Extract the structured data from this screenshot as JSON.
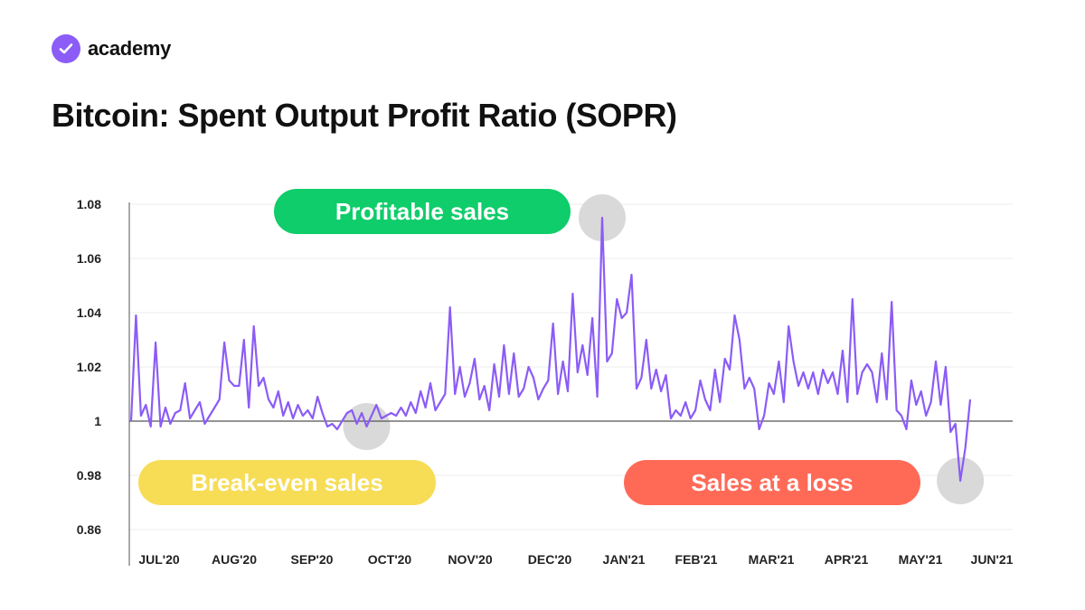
{
  "brand": {
    "name": "academy",
    "icon": "checkmark-icon",
    "color": "#8b5cf6"
  },
  "colors": {
    "line": "#8b5cf6",
    "baseline": "#555555",
    "highlight": "#d9d9d9",
    "profit": "#0fcd6a",
    "breakeven": "#f7dc56",
    "loss": "#ff6a57"
  },
  "annotations": {
    "profit": "Profitable sales",
    "breakeven": "Break-even sales",
    "loss": "Sales at a loss"
  },
  "chart_data": {
    "type": "line",
    "title": "Bitcoin: Spent Output Profit Ratio (SOPR)",
    "xlabel": "",
    "ylabel": "",
    "ylim": [
      0.86,
      1.08
    ],
    "y_axis_note": "axis is compressed: labels 0.96 position shows 0.86",
    "ytick_labels": [
      "1.08",
      "1.06",
      "1.04",
      "1.02",
      "1",
      "0.98",
      "0.86"
    ],
    "xtick_labels": [
      "JUL'20",
      "AUG'20",
      "SEP'20",
      "OCT'20",
      "NOV'20",
      "DEC'20",
      "JAN'21",
      "FEB'21",
      "MAR'21",
      "APR'21",
      "MAY'21",
      "JUN'21"
    ],
    "reference_line": 1,
    "grid": true,
    "series": [
      {
        "values": [
          1.0,
          1.039,
          1.002,
          1.006,
          0.998,
          1.029,
          0.998,
          1.005,
          0.999,
          1.003,
          1.004,
          1.014,
          1.001,
          1.004,
          1.007,
          0.999,
          1.002,
          1.005,
          1.008,
          1.029,
          1.015,
          1.013,
          1.013,
          1.03,
          1.005,
          1.035,
          1.013,
          1.016,
          1.008,
          1.005,
          1.011,
          1.002,
          1.007,
          1.001,
          1.006,
          1.002,
          1.004,
          1.001,
          1.009,
          1.003,
          0.998,
          0.999,
          0.997,
          1.0,
          1.003,
          1.004,
          0.999,
          1.003,
          0.998,
          1.002,
          1.006,
          1.001,
          1.002,
          1.003,
          1.002,
          1.005,
          1.002,
          1.007,
          1.003,
          1.011,
          1.005,
          1.014,
          1.004,
          1.007,
          1.01,
          1.042,
          1.01,
          1.02,
          1.009,
          1.014,
          1.023,
          1.008,
          1.013,
          1.004,
          1.021,
          1.009,
          1.028,
          1.01,
          1.025,
          1.009,
          1.012,
          1.02,
          1.016,
          1.008,
          1.012,
          1.015,
          1.036,
          1.01,
          1.022,
          1.011,
          1.047,
          1.018,
          1.028,
          1.017,
          1.038,
          1.009,
          1.075,
          1.022,
          1.025,
          1.045,
          1.038,
          1.04,
          1.054,
          1.012,
          1.016,
          1.03,
          1.012,
          1.019,
          1.011,
          1.017,
          1.001,
          1.004,
          1.002,
          1.007,
          1.001,
          1.004,
          1.015,
          1.008,
          1.004,
          1.019,
          1.007,
          1.023,
          1.019,
          1.039,
          1.03,
          1.012,
          1.016,
          1.012,
          0.997,
          1.002,
          1.014,
          1.01,
          1.022,
          1.007,
          1.035,
          1.022,
          1.013,
          1.018,
          1.012,
          1.018,
          1.01,
          1.019,
          1.014,
          1.018,
          1.01,
          1.026,
          1.007,
          1.045,
          1.01,
          1.018,
          1.021,
          1.018,
          1.007,
          1.025,
          1.008,
          1.044,
          1.004,
          1.002,
          0.997,
          1.015,
          1.006,
          1.011,
          1.002,
          1.007,
          1.022,
          1.006,
          1.02,
          0.996,
          0.999,
          0.978,
          0.99,
          1.008
        ]
      }
    ]
  }
}
